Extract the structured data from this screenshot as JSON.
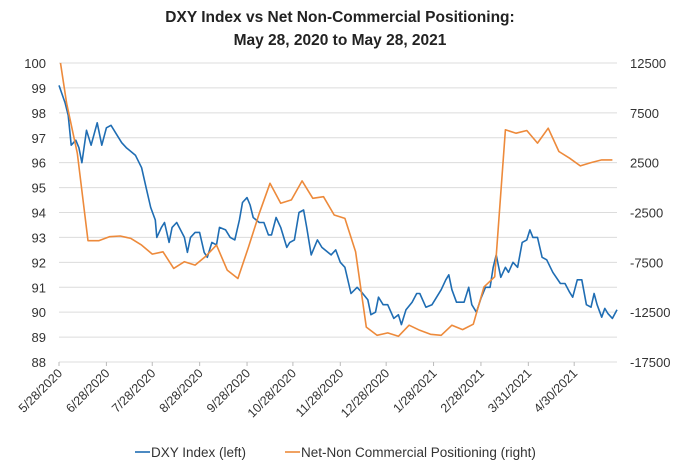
{
  "chart_data": {
    "type": "line",
    "title_line1": "DXY Index vs Net Non-Commercial Positioning:",
    "title_line2": "May 28, 2020 to May 28, 2021",
    "x_range": [
      "2020-05-28",
      "2021-05-28"
    ],
    "x_tick_labels": [
      "5/28/2020",
      "6/28/2020",
      "7/28/2020",
      "8/28/2020",
      "9/28/2020",
      "10/28/2020",
      "11/28/2020",
      "12/28/2020",
      "1/28/2021",
      "2/28/2021",
      "3/31/2021",
      "4/30/2021"
    ],
    "x_tick_dates": [
      "2020-05-28",
      "2020-06-28",
      "2020-07-28",
      "2020-08-28",
      "2020-09-28",
      "2020-10-28",
      "2020-11-28",
      "2020-12-28",
      "2021-01-28",
      "2021-02-28",
      "2021-03-31",
      "2021-04-30"
    ],
    "y_left": {
      "range": [
        88,
        100
      ],
      "ticks": [
        100,
        99,
        98,
        97,
        96,
        95,
        94,
        93,
        92,
        91,
        90,
        89,
        88
      ]
    },
    "y_right": {
      "range": [
        -17500,
        12500
      ],
      "ticks": [
        12500,
        7500,
        2500,
        -2500,
        -7500,
        -12500,
        -17500
      ]
    },
    "grid": true,
    "legend_position": "bottom",
    "series": [
      {
        "name": "DXY Index (left)",
        "axis": "left",
        "color": "#1f6db3",
        "points": [
          [
            "2020-05-28",
            99.1
          ],
          [
            "2020-06-01",
            98.4
          ],
          [
            "2020-06-03",
            97.9
          ],
          [
            "2020-06-05",
            96.7
          ],
          [
            "2020-06-08",
            96.9
          ],
          [
            "2020-06-10",
            96.6
          ],
          [
            "2020-06-12",
            96.0
          ],
          [
            "2020-06-15",
            97.3
          ],
          [
            "2020-06-18",
            96.7
          ],
          [
            "2020-06-22",
            97.6
          ],
          [
            "2020-06-25",
            96.7
          ],
          [
            "2020-06-28",
            97.4
          ],
          [
            "2020-07-01",
            97.5
          ],
          [
            "2020-07-04",
            97.2
          ],
          [
            "2020-07-08",
            96.8
          ],
          [
            "2020-07-11",
            96.6
          ],
          [
            "2020-07-15",
            96.4
          ],
          [
            "2020-07-17",
            96.3
          ],
          [
            "2020-07-21",
            95.8
          ],
          [
            "2020-07-24",
            95.0
          ],
          [
            "2020-07-27",
            94.2
          ],
          [
            "2020-07-30",
            93.7
          ],
          [
            "2020-07-31",
            93.0
          ],
          [
            "2020-08-03",
            93.4
          ],
          [
            "2020-08-05",
            93.6
          ],
          [
            "2020-08-08",
            92.8
          ],
          [
            "2020-08-10",
            93.4
          ],
          [
            "2020-08-13",
            93.6
          ],
          [
            "2020-08-18",
            93.0
          ],
          [
            "2020-08-20",
            92.4
          ],
          [
            "2020-08-22",
            93.0
          ],
          [
            "2020-08-25",
            93.2
          ],
          [
            "2020-08-28",
            93.2
          ],
          [
            "2020-08-31",
            92.4
          ],
          [
            "2020-09-02",
            92.2
          ],
          [
            "2020-09-05",
            92.8
          ],
          [
            "2020-09-08",
            92.7
          ],
          [
            "2020-09-10",
            93.4
          ],
          [
            "2020-09-14",
            93.3
          ],
          [
            "2020-09-17",
            93.0
          ],
          [
            "2020-09-20",
            92.9
          ],
          [
            "2020-09-23",
            93.7
          ],
          [
            "2020-09-25",
            94.4
          ],
          [
            "2020-09-28",
            94.6
          ],
          [
            "2020-09-30",
            94.3
          ],
          [
            "2020-10-02",
            93.8
          ],
          [
            "2020-10-06",
            93.6
          ],
          [
            "2020-10-09",
            93.6
          ],
          [
            "2020-10-12",
            93.1
          ],
          [
            "2020-10-14",
            93.1
          ],
          [
            "2020-10-17",
            93.8
          ],
          [
            "2020-10-20",
            93.4
          ],
          [
            "2020-10-24",
            92.6
          ],
          [
            "2020-10-26",
            92.8
          ],
          [
            "2020-10-29",
            92.9
          ],
          [
            "2020-11-01",
            94.0
          ],
          [
            "2020-11-04",
            94.1
          ],
          [
            "2020-11-06",
            93.4
          ],
          [
            "2020-11-09",
            92.3
          ],
          [
            "2020-11-13",
            92.9
          ],
          [
            "2020-11-16",
            92.6
          ],
          [
            "2020-11-22",
            92.3
          ],
          [
            "2020-11-25",
            92.5
          ],
          [
            "2020-11-28",
            92.0
          ],
          [
            "2020-12-01",
            91.8
          ],
          [
            "2020-12-05",
            90.75
          ],
          [
            "2020-12-09",
            91.0
          ],
          [
            "2020-12-12",
            90.8
          ],
          [
            "2020-12-16",
            90.5
          ],
          [
            "2020-12-18",
            89.9
          ],
          [
            "2020-12-21",
            90.0
          ],
          [
            "2020-12-23",
            90.6
          ],
          [
            "2020-12-26",
            90.3
          ],
          [
            "2020-12-29",
            90.3
          ],
          [
            "2021-01-02",
            89.75
          ],
          [
            "2021-01-05",
            89.9
          ],
          [
            "2021-01-07",
            89.5
          ],
          [
            "2021-01-10",
            90.1
          ],
          [
            "2021-01-14",
            90.4
          ],
          [
            "2021-01-17",
            90.75
          ],
          [
            "2021-01-19",
            90.75
          ],
          [
            "2021-01-23",
            90.2
          ],
          [
            "2021-01-27",
            90.3
          ],
          [
            "2021-01-30",
            90.6
          ],
          [
            "2021-02-02",
            90.9
          ],
          [
            "2021-02-05",
            91.3
          ],
          [
            "2021-02-07",
            91.5
          ],
          [
            "2021-02-09",
            90.9
          ],
          [
            "2021-02-12",
            90.4
          ],
          [
            "2021-02-17",
            90.4
          ],
          [
            "2021-02-20",
            91.0
          ],
          [
            "2021-02-22",
            90.3
          ],
          [
            "2021-02-25",
            90.0
          ],
          [
            "2021-02-28",
            90.55
          ],
          [
            "2021-03-03",
            91.0
          ],
          [
            "2021-03-06",
            91.0
          ],
          [
            "2021-03-08",
            91.8
          ],
          [
            "2021-03-10",
            92.3
          ],
          [
            "2021-03-13",
            91.4
          ],
          [
            "2021-03-16",
            91.8
          ],
          [
            "2021-03-18",
            91.6
          ],
          [
            "2021-03-21",
            92.0
          ],
          [
            "2021-03-24",
            91.8
          ],
          [
            "2021-03-27",
            92.8
          ],
          [
            "2021-03-30",
            92.9
          ],
          [
            "2021-04-01",
            93.3
          ],
          [
            "2021-04-03",
            93.0
          ],
          [
            "2021-04-06",
            93.0
          ],
          [
            "2021-04-09",
            92.2
          ],
          [
            "2021-04-12",
            92.1
          ],
          [
            "2021-04-16",
            91.6
          ],
          [
            "2021-04-21",
            91.15
          ],
          [
            "2021-04-24",
            91.15
          ],
          [
            "2021-04-27",
            90.8
          ],
          [
            "2021-04-29",
            90.6
          ],
          [
            "2021-05-02",
            91.3
          ],
          [
            "2021-05-05",
            91.3
          ],
          [
            "2021-05-08",
            90.3
          ],
          [
            "2021-05-11",
            90.2
          ],
          [
            "2021-05-13",
            90.75
          ],
          [
            "2021-05-15",
            90.3
          ],
          [
            "2021-05-18",
            89.8
          ],
          [
            "2021-05-20",
            90.15
          ],
          [
            "2021-05-22",
            89.95
          ],
          [
            "2021-05-25",
            89.75
          ],
          [
            "2021-05-28",
            90.1
          ]
        ]
      },
      {
        "name": "Net-Non Commercial Positioning (right)",
        "axis": "right",
        "color": "#ed8a3b",
        "points": [
          [
            "2020-05-29",
            12500
          ],
          [
            "2020-06-02",
            8480
          ],
          [
            "2020-06-09",
            3450
          ],
          [
            "2020-06-16",
            -5330
          ],
          [
            "2020-06-23",
            -5330
          ],
          [
            "2020-06-30",
            -4930
          ],
          [
            "2020-07-07",
            -4860
          ],
          [
            "2020-07-14",
            -5100
          ],
          [
            "2020-07-21",
            -5770
          ],
          [
            "2020-07-28",
            -6670
          ],
          [
            "2020-08-04",
            -6440
          ],
          [
            "2020-08-11",
            -8110
          ],
          [
            "2020-08-18",
            -7440
          ],
          [
            "2020-08-25",
            -7780
          ],
          [
            "2020-09-01",
            -6880
          ],
          [
            "2020-09-08",
            -5770
          ],
          [
            "2020-09-15",
            -8280
          ],
          [
            "2020-09-22",
            -9120
          ],
          [
            "2020-09-29",
            -5940
          ],
          [
            "2020-10-06",
            -2580
          ],
          [
            "2020-10-13",
            430
          ],
          [
            "2020-10-20",
            -1580
          ],
          [
            "2020-10-27",
            -1240
          ],
          [
            "2020-11-03",
            670
          ],
          [
            "2020-11-10",
            -1080
          ],
          [
            "2020-11-17",
            -910
          ],
          [
            "2020-11-24",
            -2750
          ],
          [
            "2020-12-01",
            -3090
          ],
          [
            "2020-12-08",
            -6440
          ],
          [
            "2020-12-15",
            -14000
          ],
          [
            "2020-12-22",
            -14820
          ],
          [
            "2020-12-29",
            -14580
          ],
          [
            "2021-01-05",
            -14920
          ],
          [
            "2021-01-12",
            -13810
          ],
          [
            "2021-01-19",
            -14320
          ],
          [
            "2021-01-26",
            -14720
          ],
          [
            "2021-02-02",
            -14820
          ],
          [
            "2021-02-09",
            -13810
          ],
          [
            "2021-02-16",
            -14250
          ],
          [
            "2021-02-23",
            -13710
          ],
          [
            "2021-03-02",
            -9960
          ],
          [
            "2021-03-09",
            -8950
          ],
          [
            "2021-03-16",
            5800
          ],
          [
            "2021-03-23",
            5460
          ],
          [
            "2021-03-30",
            5730
          ],
          [
            "2021-04-06",
            4460
          ],
          [
            "2021-04-13",
            5960
          ],
          [
            "2021-04-20",
            3620
          ],
          [
            "2021-04-27",
            2950
          ],
          [
            "2021-05-04",
            2180
          ],
          [
            "2021-05-11",
            2510
          ],
          [
            "2021-05-18",
            2780
          ],
          [
            "2021-05-25",
            2780
          ]
        ]
      }
    ]
  }
}
